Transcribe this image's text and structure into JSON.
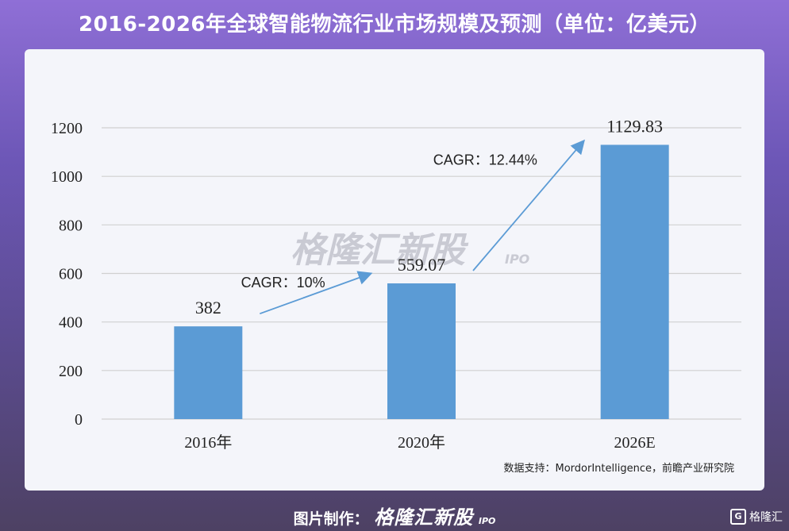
{
  "title": "2016-2026年全球智能物流行业市场规模及预测（单位：亿美元）",
  "watermark": {
    "text": "格隆汇新股",
    "sub": "IPO"
  },
  "source_note": "数据支持：MordorIntelligence，前瞻产业研究院",
  "footer": {
    "label": "图片制作：",
    "brand": "格隆汇新股",
    "sub": "IPO"
  },
  "corner_logo": {
    "icon": "G",
    "text": "格隆汇"
  },
  "colors": {
    "bar": "#5b9bd5",
    "arrow": "#5b9bd5",
    "grid": "#d0d0d0"
  },
  "chart_data": {
    "type": "bar",
    "categories": [
      "2016年",
      "2020年",
      "2026E"
    ],
    "values": [
      382,
      559.07,
      1129.83
    ],
    "data_labels": [
      "382",
      "559.07",
      "1129.83"
    ],
    "ylim": [
      0,
      1200
    ],
    "yticks": [
      0,
      200,
      400,
      600,
      800,
      1000,
      1200
    ],
    "grid": true,
    "annotations": [
      {
        "text": "CAGR：10%",
        "from": "2016年",
        "to": "2020年"
      },
      {
        "text": "CAGR：12.44%",
        "from": "2020年",
        "to": "2026E"
      }
    ]
  }
}
